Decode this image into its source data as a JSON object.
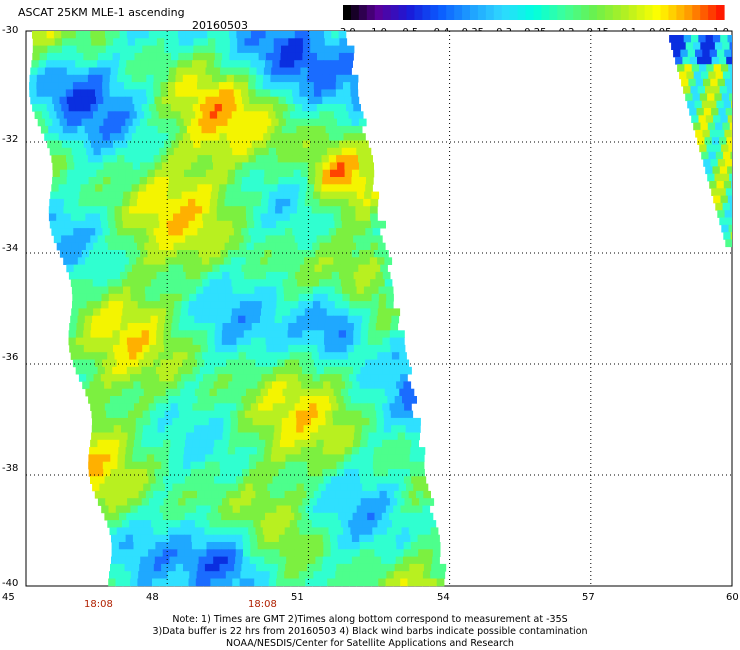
{
  "header": {
    "title": "ASCAT 25KM MLE-1 ascending",
    "date": "20160503"
  },
  "colorbar": {
    "labels": [
      "-3.0",
      "-1.0",
      "-0.5",
      "-0.4",
      "-0.35",
      "-0.3",
      "-0.25",
      "-0.2",
      "-0.15",
      "-0.1",
      "-0.05",
      "0.0",
      "1.0"
    ],
    "colors": [
      "#000000",
      "#5a009a",
      "#1a1ad8",
      "#0a5cff",
      "#1fa0ff",
      "#2fd8ff",
      "#00ffe0",
      "#3dff9a",
      "#6cf04a",
      "#b6f020",
      "#ffff00",
      "#ff9a00",
      "#ff1a00"
    ]
  },
  "axes": {
    "y_labels": [
      "-30",
      "-32",
      "-34",
      "-36",
      "-38",
      "-40"
    ],
    "x_labels": [
      "45",
      "48",
      "51",
      "54",
      "57",
      "60"
    ],
    "time_labels": [
      "18:08",
      "18:08"
    ]
  },
  "notes": {
    "line1": "Note: 1) Times are GMT 2)Times along bottom correspond to measurement at -35S",
    "line2": "3)Data buffer is 22 hrs from 20160503 4) Black wind barbs indicate possible contamination",
    "line3": "NOAA/NESDIS/Center for Satellite Applications and Research"
  }
}
